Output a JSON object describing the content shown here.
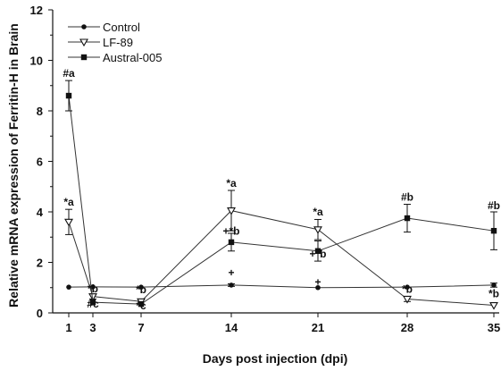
{
  "chart_data": {
    "type": "line",
    "title": "",
    "xlabel": "Days post injection (dpi)",
    "ylabel": "Relative mRNA expression of Ferritin-H in Brain",
    "x": [
      1,
      3,
      7,
      14,
      21,
      28,
      35
    ],
    "x_tick_labels": [
      "1",
      "3",
      "7",
      "14",
      "21",
      "28",
      "35"
    ],
    "ylim": [
      0,
      12
    ],
    "y_ticks": [
      0,
      2,
      4,
      6,
      8,
      10,
      12
    ],
    "grid": false,
    "legend_position": "top-left",
    "series": [
      {
        "name": "Control",
        "marker": "circle",
        "values": [
          1.02,
          1.03,
          1.02,
          1.1,
          1.0,
          1.02,
          1.1
        ],
        "errors": [
          0,
          0,
          0,
          0.05,
          0,
          0,
          0.08
        ]
      },
      {
        "name": "LF-89",
        "marker": "triangle-down-open",
        "values": [
          3.6,
          0.65,
          0.45,
          4.05,
          3.3,
          0.55,
          0.3
        ],
        "errors": [
          0.5,
          0.1,
          0,
          0.8,
          0.4,
          0.1,
          0
        ]
      },
      {
        "name": "Austral-005",
        "marker": "square",
        "values": [
          8.6,
          0.42,
          0.35,
          2.8,
          2.45,
          3.75,
          3.25
        ],
        "errors": [
          0.6,
          0,
          0,
          0.35,
          0.4,
          0.55,
          0.75
        ]
      }
    ],
    "annotations": [
      {
        "text": "#a",
        "x": 1,
        "y": 9.35
      },
      {
        "text": "*a",
        "x": 1,
        "y": 4.25
      },
      {
        "text": "*b",
        "x": 3,
        "y": 0.82
      },
      {
        "text": "#c",
        "x": 3,
        "y": 0.22
      },
      {
        "text": "*b",
        "x": 7,
        "y": 0.78
      },
      {
        "text": "*c",
        "x": 7,
        "y": 0.15
      },
      {
        "text": "*a",
        "x": 14,
        "y": 5.0
      },
      {
        "text": "+*b",
        "x": 14,
        "y": 3.1
      },
      {
        "text": "+",
        "x": 14,
        "y": 1.45
      },
      {
        "text": "*a",
        "x": 21,
        "y": 3.85
      },
      {
        "text": "+*b",
        "x": 21,
        "y": 2.2
      },
      {
        "text": "+",
        "x": 21,
        "y": 1.08
      },
      {
        "text": "#b",
        "x": 28,
        "y": 4.45
      },
      {
        "text": "*b",
        "x": 28,
        "y": 0.8
      },
      {
        "text": "#b",
        "x": 35,
        "y": 4.1
      },
      {
        "text": "*b",
        "x": 35,
        "y": 0.62
      }
    ]
  }
}
